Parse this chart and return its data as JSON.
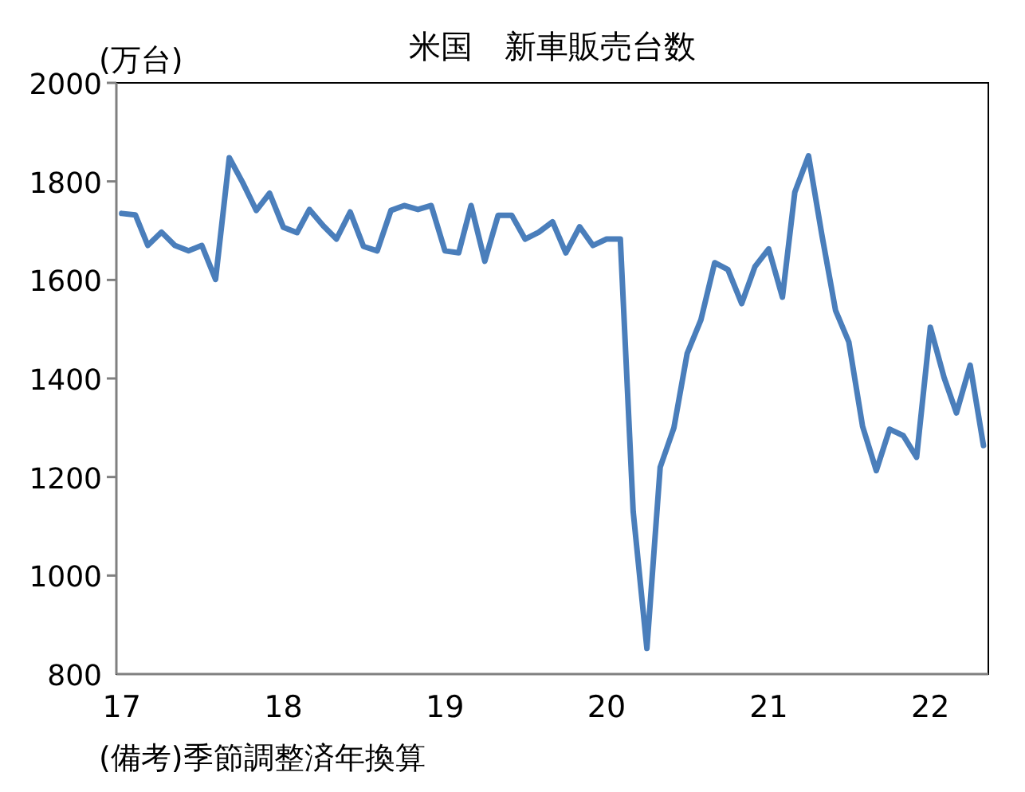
{
  "chart_data": {
    "type": "line",
    "title": "米国　新車販売台数",
    "ylabel": "(万台)",
    "x": [
      "2017-01",
      "2017-02",
      "2017-03",
      "2017-04",
      "2017-05",
      "2017-06",
      "2017-07",
      "2017-08",
      "2017-09",
      "2017-10",
      "2017-11",
      "2017-12",
      "2018-01",
      "2018-02",
      "2018-03",
      "2018-04",
      "2018-05",
      "2018-06",
      "2018-07",
      "2018-08",
      "2018-09",
      "2018-10",
      "2018-11",
      "2018-12",
      "2019-01",
      "2019-02",
      "2019-03",
      "2019-04",
      "2019-05",
      "2019-06",
      "2019-07",
      "2019-08",
      "2019-09",
      "2019-10",
      "2019-11",
      "2019-12",
      "2020-01",
      "2020-02",
      "2020-03",
      "2020-04",
      "2020-05",
      "2020-06",
      "2020-07",
      "2020-08",
      "2020-09",
      "2020-10",
      "2020-11",
      "2020-12",
      "2021-01",
      "2021-02",
      "2021-03",
      "2021-04",
      "2021-05",
      "2021-06",
      "2021-07",
      "2021-08",
      "2021-09",
      "2021-10",
      "2021-11",
      "2021-12",
      "2022-01",
      "2022-02",
      "2022-03",
      "2022-04",
      "2022-05"
    ],
    "series": [
      {
        "color": "#4a7ebb",
        "values": [
          1735,
          1732,
          1670,
          1697,
          1670,
          1659,
          1670,
          1601,
          1848,
          1798,
          1741,
          1776,
          1707,
          1696,
          1743,
          1710,
          1683,
          1738,
          1668,
          1659,
          1741,
          1751,
          1743,
          1751,
          1659,
          1655,
          1751,
          1638,
          1731,
          1731,
          1683,
          1697,
          1718,
          1655,
          1708,
          1670,
          1683,
          1683,
          1130,
          852,
          1220,
          1300,
          1451,
          1519,
          1635,
          1621,
          1552,
          1627,
          1663,
          1565,
          1778,
          1852,
          1692,
          1538,
          1474,
          1303,
          1213,
          1297,
          1284,
          1240,
          1504,
          1402,
          1330,
          1427,
          1264
        ]
      }
    ],
    "xlim": [
      "2016-12-20",
      "2022-05-12"
    ],
    "xticks": [
      {
        "value": "2017-01",
        "label": "17"
      },
      {
        "value": "2018-01",
        "label": "18"
      },
      {
        "value": "2019-01",
        "label": "19"
      },
      {
        "value": "2020-01",
        "label": "20"
      },
      {
        "value": "2021-01",
        "label": "21"
      },
      {
        "value": "2022-01",
        "label": "22"
      }
    ],
    "ylim": [
      800,
      2000
    ],
    "yticks": [
      800,
      1000,
      1200,
      1400,
      1600,
      1800,
      2000
    ],
    "grid": false,
    "marker": "none",
    "line_style": "solid",
    "annotations": [
      "(備考)季節調整済年換算"
    ]
  }
}
